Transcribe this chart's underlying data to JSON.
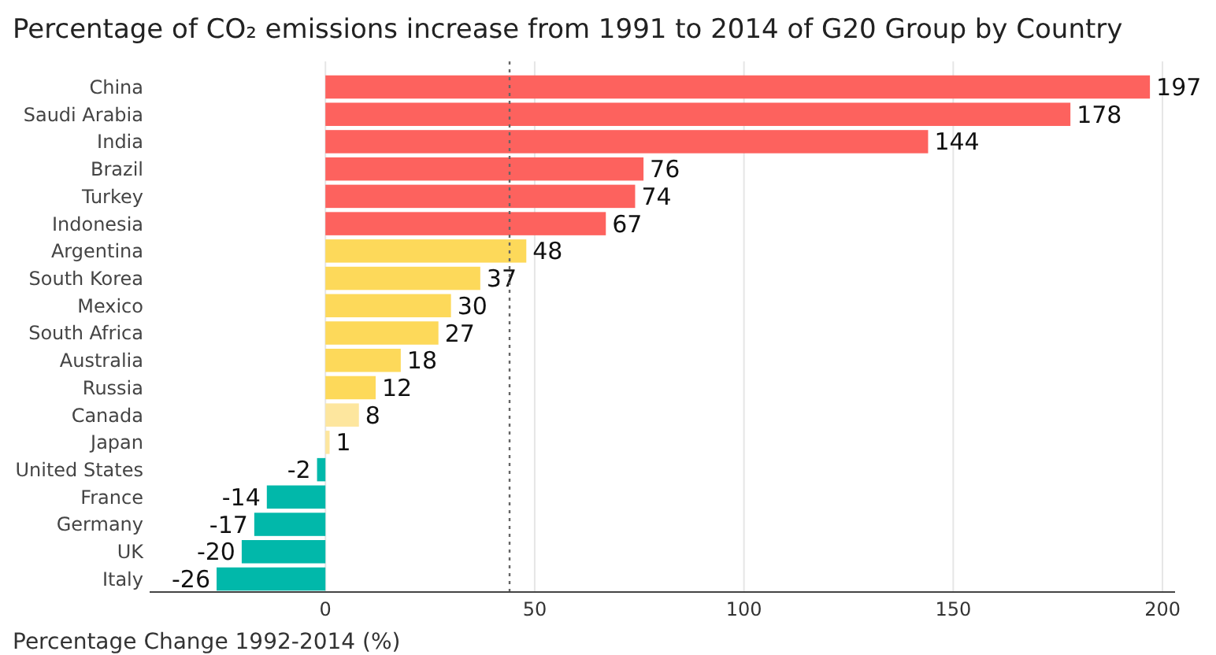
{
  "chart_data": {
    "type": "bar",
    "orientation": "horizontal",
    "title": "Percentage of CO₂ emissions increase from 1991 to 2014 of G20 Group by Country",
    "xlabel": "Percentage Change 1992-2014 (%)",
    "categories": [
      "China",
      "Saudi Arabia",
      "India",
      "Brazil",
      "Turkey",
      "Indonesia",
      "Argentina",
      "South Korea",
      "Mexico",
      "South Africa",
      "Australia",
      "Russia",
      "Canada",
      "Japan",
      "United States",
      "France",
      "Germany",
      "UK",
      "Italy"
    ],
    "values": [
      197,
      178,
      144,
      76,
      74,
      67,
      48,
      37,
      30,
      27,
      18,
      12,
      8,
      1,
      -2,
      -14,
      -17,
      -20,
      -26
    ],
    "colors": [
      "#fd625e",
      "#fd625e",
      "#fd625e",
      "#fd625e",
      "#fd625e",
      "#fd625e",
      "#fdd95a",
      "#fdd95a",
      "#fdd95a",
      "#fdd95a",
      "#fdd95a",
      "#fdd95a",
      "#fde69e",
      "#fde69e",
      "#01b8aa",
      "#01b8aa",
      "#01b8aa",
      "#01b8aa",
      "#01b8aa"
    ],
    "xlim": [
      -42,
      203
    ],
    "xticks": [
      0,
      50,
      100,
      150,
      200
    ],
    "grid": "x",
    "data_labels": true,
    "ref_lines": [
      {
        "axis": "x",
        "value": 44,
        "line_style": "dotted",
        "color": "#666666"
      }
    ]
  }
}
